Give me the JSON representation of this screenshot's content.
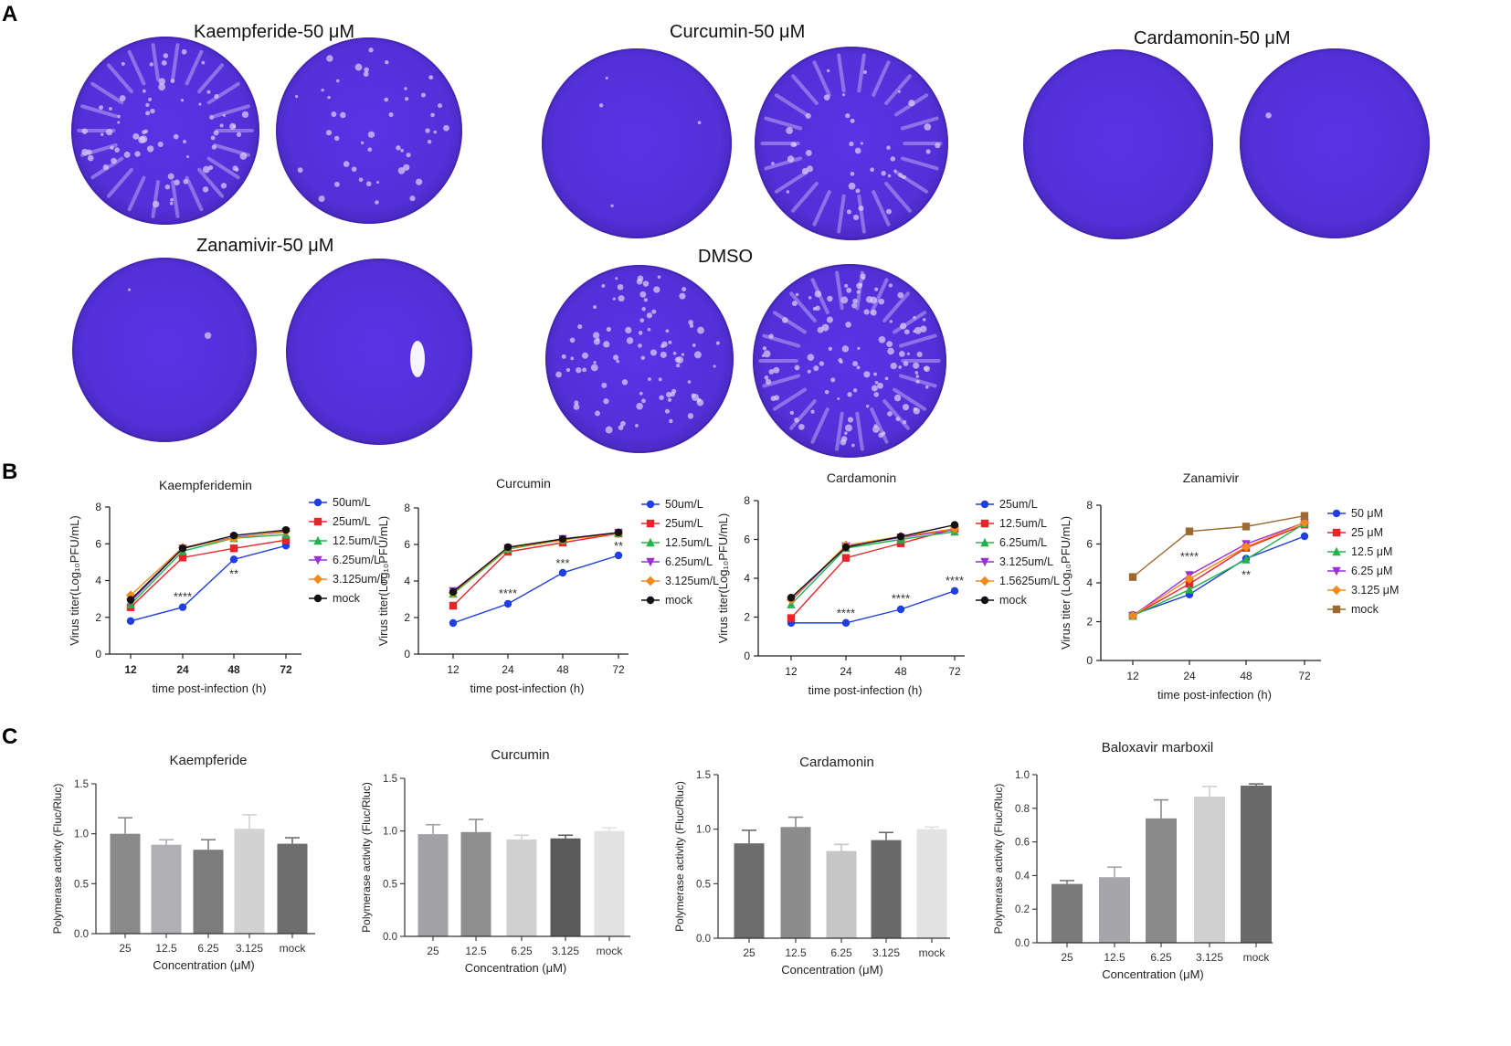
{
  "panels": {
    "a": "A",
    "b": "B",
    "c": "C"
  },
  "plates": {
    "groups": [
      {
        "title": "Kaempferide-50 μM"
      },
      {
        "title": "Curcumin-50 μM"
      },
      {
        "title": "Cardamonin-50 μM"
      },
      {
        "title": "Zanamivir-50 μM"
      },
      {
        "title": "DMSO"
      }
    ],
    "stain_color": "#5b2fdc"
  },
  "chart_data": [
    {
      "type": "line",
      "title": "Kaempferidemin",
      "xlabel": "time post-infection (h)",
      "ylabel": "Virus titer(Log10PFU/mL)",
      "categories": [
        "12",
        "24",
        "48",
        "72"
      ],
      "ylim": [
        0,
        8
      ],
      "yticks": [
        0,
        2,
        4,
        6,
        8
      ],
      "series": [
        {
          "name": "50um/L",
          "color": "#1f3fe0",
          "marker": "circle",
          "values": [
            1.8,
            2.55,
            5.15,
            5.9
          ]
        },
        {
          "name": "25um/L",
          "color": "#e8242a",
          "marker": "square",
          "values": [
            2.55,
            5.25,
            5.75,
            6.2
          ]
        },
        {
          "name": "12.5um/L",
          "color": "#22b34b",
          "marker": "triangle",
          "values": [
            2.7,
            5.6,
            6.3,
            6.5
          ]
        },
        {
          "name": "6.25um/L",
          "color": "#9b30d9",
          "marker": "triangle-down",
          "values": [
            2.85,
            5.75,
            6.35,
            6.65
          ]
        },
        {
          "name": "3.125um/L",
          "color": "#f28a1e",
          "marker": "diamond",
          "values": [
            3.2,
            5.8,
            6.3,
            6.7
          ]
        },
        {
          "name": "mock",
          "color": "#111111",
          "marker": "circle",
          "values": [
            2.95,
            5.75,
            6.45,
            6.75
          ]
        }
      ],
      "annotations": [
        {
          "x": "24",
          "y": 3.1,
          "text": "****"
        },
        {
          "x": "48",
          "y": 4.35,
          "text": "**"
        }
      ]
    },
    {
      "type": "line",
      "title": "Curcumin",
      "xlabel": "time post-infection (h)",
      "ylabel": "Virus titer(Log10PFU/mL)",
      "categories": [
        "12",
        "24",
        "48",
        "72"
      ],
      "ylim": [
        0,
        8
      ],
      "yticks": [
        0,
        2,
        4,
        6,
        8
      ],
      "series": [
        {
          "name": "50um/L",
          "color": "#1f3fe0",
          "marker": "circle",
          "values": [
            1.7,
            2.75,
            4.45,
            5.4
          ]
        },
        {
          "name": "25um/L",
          "color": "#e8242a",
          "marker": "square",
          "values": [
            2.65,
            5.6,
            6.1,
            6.6
          ]
        },
        {
          "name": "12.5um/L",
          "color": "#22b34b",
          "marker": "triangle",
          "values": [
            3.3,
            5.75,
            6.25,
            6.65
          ]
        },
        {
          "name": "6.25um/L",
          "color": "#9b30d9",
          "marker": "triangle-down",
          "values": [
            3.45,
            5.8,
            6.3,
            6.65
          ]
        },
        {
          "name": "3.125um/L",
          "color": "#f28a1e",
          "marker": "diamond",
          "values": [
            3.35,
            5.8,
            6.25,
            6.6
          ]
        },
        {
          "name": "mock",
          "color": "#111111",
          "marker": "circle",
          "values": [
            3.4,
            5.85,
            6.3,
            6.65
          ]
        }
      ],
      "annotations": [
        {
          "x": "24",
          "y": 3.3,
          "text": "****"
        },
        {
          "x": "48",
          "y": 4.95,
          "text": "***"
        },
        {
          "x": "72",
          "y": 5.9,
          "text": "**"
        }
      ]
    },
    {
      "type": "line",
      "title": "Cardamonin",
      "xlabel": "time post-infection (h)",
      "ylabel": "Virus titer(Log10PFU/mL)",
      "categories": [
        "12",
        "24",
        "48",
        "72"
      ],
      "ylim": [
        0,
        8
      ],
      "yticks": [
        0,
        2,
        4,
        6,
        8
      ],
      "series": [
        {
          "name": "25um/L",
          "color": "#1f3fe0",
          "marker": "circle",
          "values": [
            1.7,
            1.7,
            2.4,
            3.35
          ]
        },
        {
          "name": "12.5um/L",
          "color": "#e8242a",
          "marker": "square",
          "values": [
            1.95,
            5.05,
            5.8,
            6.55
          ]
        },
        {
          "name": "6.25um/L",
          "color": "#22b34b",
          "marker": "triangle",
          "values": [
            2.65,
            5.55,
            6.0,
            6.4
          ]
        },
        {
          "name": "3.125um/L",
          "color": "#9b30d9",
          "marker": "triangle-down",
          "values": [
            2.85,
            5.65,
            6.1,
            6.5
          ]
        },
        {
          "name": "1.5625um/L",
          "color": "#f28a1e",
          "marker": "diamond",
          "values": [
            2.9,
            5.7,
            6.15,
            6.55
          ]
        },
        {
          "name": "mock",
          "color": "#111111",
          "marker": "circle",
          "values": [
            3.0,
            5.6,
            6.15,
            6.75
          ]
        }
      ],
      "annotations": [
        {
          "x": "24",
          "y": 2.2,
          "text": "****"
        },
        {
          "x": "48",
          "y": 2.95,
          "text": "****"
        },
        {
          "x": "72",
          "y": 3.85,
          "text": "****"
        }
      ]
    },
    {
      "type": "line",
      "title": "Zanamivir",
      "xlabel": "time post-infection (h)",
      "ylabel": "Virus titer (Log10PFU/mL)",
      "categories": [
        "12",
        "24",
        "48",
        "72"
      ],
      "ylim": [
        0,
        8
      ],
      "yticks": [
        0,
        2,
        4,
        6,
        8
      ],
      "series": [
        {
          "name": "50 μM",
          "color": "#1f3fe0",
          "marker": "circle",
          "values": [
            2.35,
            3.4,
            5.25,
            6.4
          ]
        },
        {
          "name": "25 μM",
          "color": "#e8242a",
          "marker": "square",
          "values": [
            2.3,
            3.95,
            5.8,
            7.0
          ]
        },
        {
          "name": "12.5 μM",
          "color": "#22b34b",
          "marker": "triangle",
          "values": [
            2.3,
            3.65,
            5.2,
            7.05
          ]
        },
        {
          "name": "6.25 μM",
          "color": "#9b30d9",
          "marker": "triangle-down",
          "values": [
            2.3,
            4.4,
            6.0,
            7.1
          ]
        },
        {
          "name": "3.125 μM",
          "color": "#f28a1e",
          "marker": "diamond",
          "values": [
            2.3,
            4.2,
            5.85,
            7.1
          ]
        },
        {
          "name": "mock",
          "color": "#9c6a2e",
          "marker": "square",
          "values": [
            4.3,
            6.65,
            6.9,
            7.45
          ]
        }
      ],
      "annotations": [
        {
          "x": "24",
          "y": 5.35,
          "text": "****"
        },
        {
          "x": "48",
          "y": 4.4,
          "text": "**"
        }
      ]
    },
    {
      "type": "bar",
      "title": "Kaempferide",
      "xlabel": "Concentration (μM)",
      "ylabel": "Polymerase activity (Fluc/Rluc)",
      "categories": [
        "25",
        "12.5",
        "6.25",
        "3.125",
        "mock"
      ],
      "values": [
        1.0,
        0.89,
        0.84,
        1.05,
        0.9
      ],
      "errors": [
        0.16,
        0.05,
        0.1,
        0.14,
        0.06
      ],
      "colors": [
        "#8a8a8a",
        "#b0b0b4",
        "#7c7c7c",
        "#d2d2d2",
        "#6e6e6e"
      ],
      "ylim": [
        0,
        1.5
      ],
      "yticks": [
        "0.0",
        "0.5",
        "1.0",
        "1.5"
      ]
    },
    {
      "type": "bar",
      "title": "Curcumin",
      "xlabel": "Concentration (μM)",
      "ylabel": "Polymerase activity (Fluc/Rluc)",
      "categories": [
        "25",
        "12.5",
        "6.25",
        "3.125",
        "mock"
      ],
      "values": [
        0.97,
        0.99,
        0.92,
        0.93,
        1.0
      ],
      "errors": [
        0.09,
        0.12,
        0.04,
        0.03,
        0.03
      ],
      "colors": [
        "#a2a2a6",
        "#8e8e8e",
        "#d0d0d0",
        "#5a5a5a",
        "#e2e2e2"
      ],
      "ylim": [
        0,
        1.5
      ],
      "yticks": [
        "0.0",
        "0.5",
        "1.0",
        "1.5"
      ]
    },
    {
      "type": "bar",
      "title": "Cardamonin",
      "xlabel": "Concentration (μM)",
      "ylabel": "Polymerase activity (Fluc/Rluc)",
      "categories": [
        "25",
        "12.5",
        "6.25",
        "3.125",
        "mock"
      ],
      "values": [
        0.87,
        1.02,
        0.8,
        0.9,
        1.0
      ],
      "errors": [
        0.12,
        0.09,
        0.06,
        0.07,
        0.02
      ],
      "colors": [
        "#6c6c6c",
        "#8c8c8c",
        "#c6c6c6",
        "#6a6a6a",
        "#e2e2e2"
      ],
      "ylim": [
        0,
        1.5
      ],
      "yticks": [
        "0.0",
        "0.5",
        "1.0",
        "1.5"
      ]
    },
    {
      "type": "bar",
      "title": "Baloxavir marboxil",
      "xlabel": "Concentration (μM)",
      "ylabel": "Polymerase activity (Fluc/Rluc)",
      "categories": [
        "25",
        "12.5",
        "6.25",
        "3.125",
        "mock"
      ],
      "values": [
        0.35,
        0.39,
        0.74,
        0.87,
        0.935
      ],
      "errors": [
        0.02,
        0.06,
        0.11,
        0.06,
        0.01
      ],
      "colors": [
        "#7a7a7a",
        "#a6a6aa",
        "#8a8a8a",
        "#d0d0d0",
        "#6a6a6a"
      ],
      "ylim": [
        0,
        1.0
      ],
      "yticks": [
        "0.0",
        "0.2",
        "0.4",
        "0.6",
        "0.8",
        "1.0"
      ]
    }
  ]
}
